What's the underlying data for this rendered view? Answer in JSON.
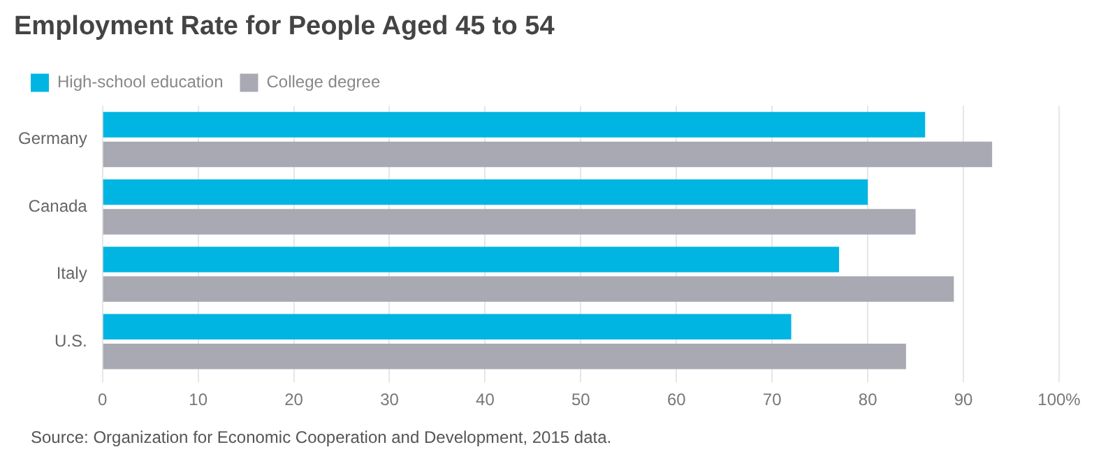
{
  "chart_data": {
    "type": "bar",
    "orientation": "horizontal",
    "title": "Employment Rate for People Aged 45 to 54",
    "categories": [
      "Germany",
      "Canada",
      "Italy",
      "U.S."
    ],
    "series": [
      {
        "name": "High-school education",
        "color": "#00b5e2",
        "values": [
          86,
          80,
          77,
          72
        ]
      },
      {
        "name": "College degree",
        "color": "#a9a9b3",
        "values": [
          93,
          85,
          89,
          84
        ]
      }
    ],
    "xlim": [
      0,
      100
    ],
    "xticks": [
      0,
      10,
      20,
      30,
      40,
      50,
      60,
      70,
      80,
      90,
      {
        "value": 100,
        "label": "100%"
      }
    ],
    "grid": "x",
    "legend": "top left",
    "annotations": [
      "Source: Organization for Economic Cooperation and Development, 2015 data."
    ]
  }
}
